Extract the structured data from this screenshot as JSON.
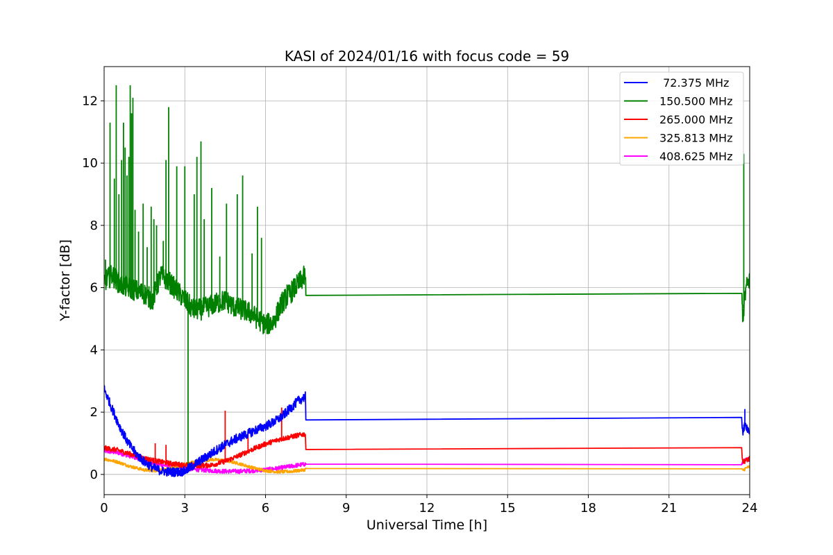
{
  "chart_data": {
    "type": "line",
    "title": "KASI of 2024/01/16 with focus code = 59",
    "xlabel": "Universal Time [h]",
    "ylabel": "Y-factor [dB]",
    "xlim": [
      0,
      24
    ],
    "ylim": [
      -0.65,
      13.1
    ],
    "xticks": [
      0,
      3,
      6,
      9,
      12,
      15,
      18,
      21,
      24
    ],
    "yticks": [
      0,
      2,
      4,
      6,
      8,
      10,
      12
    ],
    "grid": true,
    "legend_position": "top-right",
    "series": [
      {
        "name": " 72.375 MHz",
        "color": "#0000ff",
        "noise": 0.15,
        "x": [
          0,
          0.3,
          0.6,
          0.9,
          1.2,
          1.5,
          1.8,
          2.1,
          2.4,
          2.7,
          3.0,
          3.3,
          3.6,
          3.9,
          4.2,
          4.5,
          4.8,
          5.1,
          5.4,
          5.7,
          6.0,
          6.3,
          6.6,
          6.9,
          7.2,
          7.48,
          7.5,
          23.7,
          23.75,
          23.85,
          24
        ],
        "y": [
          2.75,
          2.1,
          1.5,
          1.0,
          0.65,
          0.4,
          0.22,
          0.12,
          0.08,
          0.08,
          0.1,
          0.28,
          0.45,
          0.62,
          0.8,
          0.95,
          1.1,
          1.22,
          1.33,
          1.45,
          1.55,
          1.68,
          1.85,
          2.1,
          2.35,
          2.5,
          1.75,
          1.7,
          1.4,
          1.6,
          1.35
        ]
      },
      {
        "name": "150.500 MHz",
        "color": "#008000",
        "noise": 0.35,
        "x": [
          0,
          0.3,
          0.6,
          0.9,
          1.2,
          1.5,
          1.8,
          2.1,
          2.4,
          2.7,
          3.0,
          3.3,
          3.6,
          3.9,
          4.2,
          4.5,
          4.8,
          5.1,
          5.4,
          5.7,
          6.0,
          6.3,
          6.6,
          6.9,
          7.2,
          7.48,
          7.5,
          23.7,
          23.75,
          23.85,
          24
        ],
        "y": [
          6.2,
          6.4,
          6.1,
          6.0,
          5.9,
          5.8,
          5.6,
          6.4,
          6.2,
          5.9,
          5.6,
          5.3,
          5.3,
          5.4,
          5.5,
          5.6,
          5.4,
          5.3,
          5.2,
          5.0,
          4.8,
          4.9,
          5.5,
          5.8,
          6.1,
          6.4,
          5.75,
          5.72,
          5.1,
          5.9,
          6.3
        ]
      },
      {
        "name": "265.000 MHz",
        "color": "#ff0000",
        "noise": 0.08,
        "x": [
          0,
          0.5,
          1.0,
          1.5,
          2.0,
          2.5,
          3.0,
          3.5,
          4.0,
          4.5,
          5.0,
          5.5,
          6.0,
          6.5,
          7.0,
          7.48,
          7.5,
          23.7,
          23.75,
          23.85,
          24
        ],
        "y": [
          0.85,
          0.78,
          0.65,
          0.52,
          0.42,
          0.35,
          0.3,
          0.28,
          0.3,
          0.42,
          0.6,
          0.8,
          0.98,
          1.12,
          1.22,
          1.3,
          0.8,
          0.78,
          0.4,
          0.45,
          0.5
        ]
      },
      {
        "name": "325.813 MHz",
        "color": "#ffa500",
        "noise": 0.05,
        "x": [
          0,
          0.5,
          1.0,
          1.5,
          2.0,
          2.5,
          3.0,
          3.5,
          4.0,
          4.5,
          5.0,
          5.5,
          6.0,
          6.5,
          7.0,
          7.48,
          7.5,
          23.7,
          23.75,
          23.85,
          24
        ],
        "y": [
          0.5,
          0.4,
          0.25,
          0.14,
          0.12,
          0.2,
          0.33,
          0.43,
          0.48,
          0.45,
          0.35,
          0.22,
          0.12,
          0.08,
          0.1,
          0.15,
          0.19,
          0.19,
          0.12,
          0.2,
          0.25
        ]
      },
      {
        "name": "408.625 MHz",
        "color": "#ff00ff",
        "noise": 0.07,
        "x": [
          0,
          0.5,
          1.0,
          1.5,
          2.0,
          2.5,
          3.0,
          3.5,
          4.0,
          4.5,
          5.0,
          5.5,
          6.0,
          6.5,
          7.0,
          7.48,
          7.5,
          23.7,
          23.75,
          23.85,
          24
        ],
        "y": [
          0.75,
          0.7,
          0.58,
          0.45,
          0.33,
          0.25,
          0.2,
          0.15,
          0.12,
          0.1,
          0.1,
          0.12,
          0.15,
          0.2,
          0.27,
          0.33,
          0.33,
          0.33,
          0.4,
          0.45,
          0.5
        ]
      }
    ],
    "spikes": [
      {
        "series": 1,
        "x": 0.05,
        "y": 6.9
      },
      {
        "series": 1,
        "x": 0.22,
        "y": 11.3
      },
      {
        "series": 1,
        "x": 0.38,
        "y": 9.5
      },
      {
        "series": 1,
        "x": 0.45,
        "y": 12.5
      },
      {
        "series": 1,
        "x": 0.55,
        "y": 9.0
      },
      {
        "series": 1,
        "x": 0.65,
        "y": 10.1
      },
      {
        "series": 1,
        "x": 0.72,
        "y": 11.3
      },
      {
        "series": 1,
        "x": 0.78,
        "y": 10.5
      },
      {
        "series": 1,
        "x": 0.85,
        "y": 9.6
      },
      {
        "series": 1,
        "x": 0.92,
        "y": 10.2
      },
      {
        "series": 1,
        "x": 0.97,
        "y": 12.5
      },
      {
        "series": 1,
        "x": 1.02,
        "y": 11.6
      },
      {
        "series": 1,
        "x": 1.07,
        "y": 12.1
      },
      {
        "series": 1,
        "x": 1.15,
        "y": 8.5
      },
      {
        "series": 1,
        "x": 1.28,
        "y": 7.8
      },
      {
        "series": 1,
        "x": 1.45,
        "y": 8.7
      },
      {
        "series": 1,
        "x": 1.6,
        "y": 7.3
      },
      {
        "series": 1,
        "x": 1.75,
        "y": 8.6
      },
      {
        "series": 1,
        "x": 1.85,
        "y": 8.2
      },
      {
        "series": 1,
        "x": 1.95,
        "y": 8.0
      },
      {
        "series": 1,
        "x": 2.2,
        "y": 7.5
      },
      {
        "series": 1,
        "x": 2.3,
        "y": 10.1
      },
      {
        "series": 1,
        "x": 2.4,
        "y": 11.8
      },
      {
        "series": 1,
        "x": 2.7,
        "y": 9.9
      },
      {
        "series": 1,
        "x": 3.0,
        "y": 9.9
      },
      {
        "series": 1,
        "x": 3.35,
        "y": 9.0
      },
      {
        "series": 1,
        "x": 3.45,
        "y": 10.2
      },
      {
        "series": 1,
        "x": 3.6,
        "y": 10.7
      },
      {
        "series": 1,
        "x": 3.72,
        "y": 8.2
      },
      {
        "series": 1,
        "x": 4.0,
        "y": 9.2
      },
      {
        "series": 1,
        "x": 4.3,
        "y": 7.0
      },
      {
        "series": 1,
        "x": 4.55,
        "y": 8.7
      },
      {
        "series": 1,
        "x": 4.95,
        "y": 9.0
      },
      {
        "series": 1,
        "x": 5.15,
        "y": 9.6
      },
      {
        "series": 1,
        "x": 5.5,
        "y": 7.1
      },
      {
        "series": 1,
        "x": 5.7,
        "y": 8.6
      },
      {
        "series": 1,
        "x": 5.85,
        "y": 7.6
      },
      {
        "series": 1,
        "x": 6.8,
        "y": 6.1
      },
      {
        "series": 1,
        "x": 23.78,
        "y": 10.3
      },
      {
        "series": 1,
        "x": 3.12,
        "y": 0.3
      },
      {
        "series": 2,
        "x": 1.9,
        "y": 1.0
      },
      {
        "series": 2,
        "x": 2.3,
        "y": 0.95
      },
      {
        "series": 2,
        "x": 4.5,
        "y": 2.05
      },
      {
        "series": 2,
        "x": 5.35,
        "y": 1.45
      },
      {
        "series": 2,
        "x": 6.6,
        "y": 2.15
      },
      {
        "series": 0,
        "x": 23.82,
        "y": 2.1
      }
    ]
  }
}
